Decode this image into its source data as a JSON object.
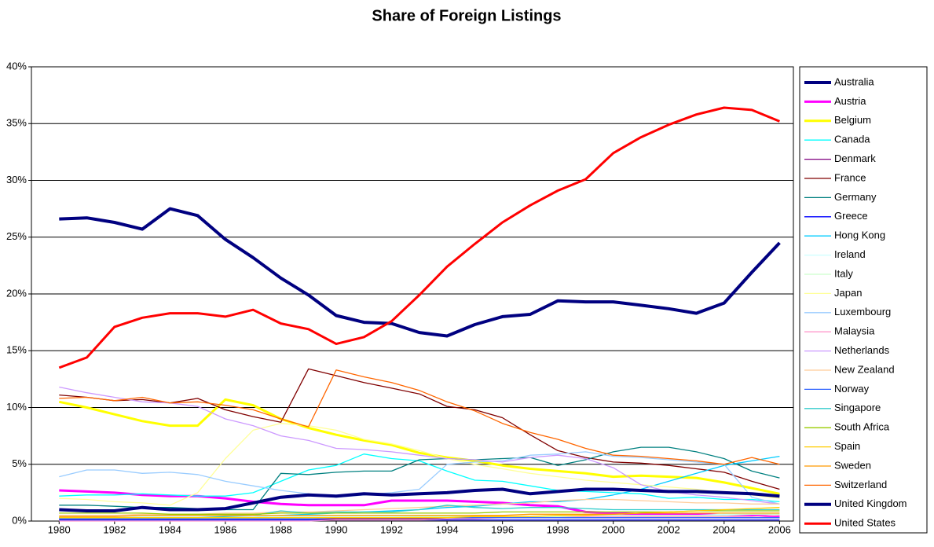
{
  "chart_data": {
    "type": "line",
    "title": "Share of Foreign Listings",
    "x": [
      1980,
      1981,
      1982,
      1983,
      1984,
      1985,
      1986,
      1987,
      1988,
      1989,
      1990,
      1991,
      1992,
      1993,
      1994,
      1995,
      1996,
      1997,
      1998,
      1999,
      2000,
      2001,
      2002,
      2003,
      2004,
      2005,
      2006
    ],
    "xlim": [
      1979,
      2006.5
    ],
    "xticks": [
      1980,
      1982,
      1984,
      1986,
      1988,
      1990,
      1992,
      1994,
      1996,
      1998,
      2000,
      2002,
      2004,
      2006
    ],
    "ylim": [
      0,
      40
    ],
    "yticks": [
      {
        "value": 0,
        "label": "0%"
      },
      {
        "value": 5,
        "label": "5%"
      },
      {
        "value": 10,
        "label": "10%"
      },
      {
        "value": 15,
        "label": "15%"
      },
      {
        "value": 20,
        "label": "20%"
      },
      {
        "value": 25,
        "label": "25%"
      },
      {
        "value": 30,
        "label": "30%"
      },
      {
        "value": 35,
        "label": "35%"
      },
      {
        "value": 40,
        "label": "40%"
      }
    ],
    "grid": true,
    "legend": "right",
    "series": [
      {
        "name": "Australia",
        "color": "#000080",
        "width": 4,
        "values": [
          26.6,
          26.7,
          26.3,
          25.7,
          27.5,
          26.9,
          24.8,
          23.2,
          21.4,
          19.9,
          18.1,
          17.5,
          17.4,
          16.6,
          16.3,
          17.3,
          18.0,
          18.2,
          19.4,
          19.3,
          19.3,
          19.0,
          18.7,
          18.3,
          19.2,
          21.9,
          24.5
        ]
      },
      {
        "name": "Austria",
        "color": "#ff00ff",
        "width": 3,
        "values": [
          2.7,
          2.6,
          2.5,
          2.3,
          2.2,
          2.2,
          2.0,
          1.7,
          1.5,
          1.4,
          1.4,
          1.4,
          1.8,
          1.8,
          1.8,
          1.7,
          1.6,
          1.4,
          1.3,
          0.8,
          0.7,
          0.6,
          0.6,
          0.6,
          0.5,
          0.5,
          0.4
        ]
      },
      {
        "name": "Belgium",
        "color": "#ffff00",
        "width": 3,
        "values": [
          10.5,
          10.0,
          9.4,
          8.8,
          8.4,
          8.4,
          10.7,
          10.2,
          9.0,
          8.2,
          7.6,
          7.1,
          6.7,
          6.0,
          5.6,
          5.3,
          4.9,
          4.6,
          4.4,
          4.2,
          3.9,
          4.0,
          3.9,
          3.8,
          3.4,
          2.9,
          2.4
        ]
      },
      {
        "name": "Canada",
        "color": "#00ffff",
        "width": 1.3,
        "values": [
          2.2,
          2.3,
          2.3,
          2.4,
          2.3,
          2.2,
          2.2,
          2.5,
          3.5,
          4.5,
          4.9,
          5.9,
          5.5,
          5.3,
          4.4,
          3.6,
          3.5,
          3.1,
          2.7,
          2.6,
          2.5,
          2.4,
          2.0,
          2.1,
          1.9,
          1.9,
          1.7
        ]
      },
      {
        "name": "Denmark",
        "color": "#800080",
        "width": 1.3,
        "values": [
          0.2,
          0.2,
          0.2,
          0.2,
          0.2,
          0.2,
          0.2,
          0.2,
          0.2,
          0.2,
          0.2,
          0.2,
          0.2,
          0.2,
          0.2,
          0.3,
          0.3,
          0.3,
          0.3,
          0.3,
          0.3,
          0.3,
          0.3,
          0.3,
          0.3,
          0.3,
          0.3
        ]
      },
      {
        "name": "France",
        "color": "#800000",
        "width": 1.3,
        "values": [
          11.1,
          10.9,
          10.6,
          10.7,
          10.4,
          10.8,
          9.8,
          9.2,
          8.7,
          13.4,
          12.8,
          12.2,
          11.7,
          11.2,
          10.1,
          9.8,
          9.1,
          7.6,
          6.2,
          5.6,
          5.2,
          5.1,
          4.9,
          4.6,
          4.3,
          3.5,
          2.8
        ]
      },
      {
        "name": "Germany",
        "color": "#008080",
        "width": 1.3,
        "values": [
          1.4,
          1.4,
          1.3,
          1.2,
          1.2,
          1.1,
          1.0,
          1.0,
          4.2,
          4.1,
          4.3,
          4.4,
          4.4,
          5.4,
          5.5,
          5.4,
          5.5,
          5.6,
          4.9,
          5.4,
          6.1,
          6.5,
          6.5,
          6.1,
          5.5,
          4.4,
          3.8
        ]
      },
      {
        "name": "Greece",
        "color": "#0000ff",
        "width": 1.3,
        "values": [
          0.1,
          0.1,
          0.1,
          0.1,
          0.1,
          0.1,
          0.1,
          0.1,
          0.1,
          0.1,
          0.1,
          0.1,
          0.1,
          0.1,
          0.1,
          0.1,
          0.1,
          0.1,
          0.1,
          0.1,
          0.1,
          0.1,
          0.1,
          0.1,
          0.1,
          0.1,
          0.1
        ]
      },
      {
        "name": "Hong Kong",
        "color": "#00ccff",
        "width": 1.3,
        "values": [
          0.3,
          0.3,
          0.3,
          0.3,
          0.3,
          0.3,
          0.3,
          0.3,
          0.5,
          0.6,
          0.7,
          0.8,
          0.9,
          1.0,
          1.2,
          1.3,
          1.5,
          1.7,
          1.7,
          1.9,
          2.3,
          2.8,
          3.5,
          4.2,
          4.9,
          5.3,
          5.7
        ]
      },
      {
        "name": "Ireland",
        "color": "#ccffff",
        "width": 1.3,
        "values": [
          0.4,
          0.4,
          0.4,
          0.4,
          0.4,
          0.4,
          0.4,
          0.4,
          0.4,
          0.4,
          0.4,
          0.4,
          0.4,
          0.4,
          0.4,
          0.4,
          0.4,
          0.4,
          0.5,
          0.5,
          0.5,
          0.5,
          0.5,
          0.5,
          0.6,
          0.6,
          0.6
        ]
      },
      {
        "name": "Italy",
        "color": "#ccffcc",
        "width": 1.3,
        "values": [
          0.3,
          0.3,
          0.3,
          0.3,
          0.3,
          0.3,
          0.3,
          0.3,
          0.3,
          0.3,
          0.3,
          0.3,
          0.3,
          0.4,
          0.4,
          0.4,
          0.4,
          0.4,
          0.4,
          0.4,
          0.5,
          0.5,
          0.5,
          0.5,
          0.5,
          0.6,
          0.6
        ]
      },
      {
        "name": "Japan",
        "color": "#ffff99",
        "width": 1.3,
        "values": [
          2.0,
          1.9,
          1.7,
          1.6,
          1.4,
          2.5,
          5.5,
          8.0,
          8.6,
          8.4,
          8.0,
          7.2,
          6.8,
          6.2,
          5.5,
          5.0,
          4.6,
          4.2,
          3.9,
          3.6,
          3.4,
          3.2,
          3.0,
          2.8,
          2.5,
          2.3,
          2.0
        ]
      },
      {
        "name": "Luxembourg",
        "color": "#99ccff",
        "width": 1.3,
        "values": [
          3.9,
          4.5,
          4.5,
          4.2,
          4.3,
          4.1,
          3.5,
          3.1,
          2.7,
          2.4,
          2.1,
          2.3,
          2.5,
          2.8,
          5.0,
          5.2,
          5.3,
          5.8,
          5.9,
          6.1,
          5.7,
          5.6,
          5.4,
          5.2,
          5.0,
          2.1,
          1.5
        ]
      },
      {
        "name": "Malaysia",
        "color": "#ff99cc",
        "width": 1.3,
        "values": [
          0.0,
          0.0,
          0.0,
          0.0,
          0.0,
          0.0,
          0.0,
          0.0,
          0.0,
          0.0,
          0.1,
          0.1,
          0.1,
          0.1,
          0.2,
          0.2,
          0.3,
          0.3,
          0.3,
          0.4,
          0.4,
          0.4,
          0.4,
          0.4,
          0.4,
          0.4,
          0.5
        ]
      },
      {
        "name": "Netherlands",
        "color": "#cc99ff",
        "width": 1.3,
        "values": [
          11.8,
          11.3,
          10.9,
          10.5,
          10.4,
          10.1,
          9.0,
          8.4,
          7.5,
          7.1,
          6.4,
          6.3,
          6.1,
          5.8,
          5.5,
          5.4,
          5.2,
          5.6,
          5.8,
          5.5,
          4.7,
          3.2,
          2.6,
          2.3,
          2.1,
          1.8,
          1.5
        ]
      },
      {
        "name": "New Zealand",
        "color": "#ffcc99",
        "width": 1.3,
        "values": [
          0.5,
          0.5,
          0.5,
          0.6,
          0.6,
          0.6,
          0.7,
          0.7,
          0.8,
          0.8,
          0.9,
          1.0,
          1.1,
          1.2,
          1.3,
          1.4,
          1.5,
          1.6,
          1.8,
          1.9,
          1.9,
          1.8,
          1.7,
          1.6,
          1.6,
          1.5,
          1.5
        ]
      },
      {
        "name": "Norway",
        "color": "#3366ff",
        "width": 1.3,
        "values": [
          0.2,
          0.2,
          0.2,
          0.2,
          0.2,
          0.2,
          0.2,
          0.2,
          0.2,
          0.2,
          0.3,
          0.3,
          0.3,
          0.3,
          0.3,
          0.3,
          0.3,
          0.3,
          0.3,
          0.3,
          0.3,
          0.3,
          0.3,
          0.3,
          0.3,
          0.3,
          0.3
        ]
      },
      {
        "name": "Singapore",
        "color": "#33cccc",
        "width": 1.3,
        "values": [
          0.3,
          0.3,
          0.3,
          0.3,
          0.3,
          0.3,
          0.4,
          0.5,
          0.9,
          0.7,
          0.8,
          0.8,
          0.8,
          1.0,
          1.4,
          1.2,
          1.1,
          1.2,
          1.2,
          1.1,
          1.0,
          1.0,
          1.0,
          1.0,
          1.0,
          1.0,
          1.0
        ]
      },
      {
        "name": "South Africa",
        "color": "#99cc00",
        "width": 1.3,
        "values": [
          0.7,
          0.7,
          0.7,
          0.7,
          0.6,
          0.6,
          0.6,
          0.6,
          0.7,
          0.7,
          0.7,
          0.7,
          0.7,
          0.7,
          0.7,
          0.7,
          0.8,
          0.8,
          0.8,
          0.8,
          0.8,
          0.8,
          0.8,
          0.9,
          0.9,
          0.9,
          0.9
        ]
      },
      {
        "name": "Spain",
        "color": "#ffcc00",
        "width": 1.3,
        "values": [
          0.3,
          0.3,
          0.3,
          0.3,
          0.3,
          0.3,
          0.3,
          0.3,
          0.3,
          0.3,
          0.3,
          0.3,
          0.3,
          0.3,
          0.3,
          0.4,
          0.4,
          0.4,
          0.5,
          0.5,
          0.6,
          0.7,
          0.8,
          0.9,
          1.0,
          1.1,
          1.2
        ]
      },
      {
        "name": "Sweden",
        "color": "#ff9900",
        "width": 1.3,
        "values": [
          0.4,
          0.4,
          0.4,
          0.5,
          0.5,
          0.5,
          0.5,
          0.5,
          0.5,
          0.5,
          0.5,
          0.5,
          0.5,
          0.5,
          0.5,
          0.5,
          0.5,
          0.6,
          0.6,
          0.6,
          0.6,
          0.7,
          0.7,
          0.7,
          0.7,
          0.7,
          0.7
        ]
      },
      {
        "name": "Switzerland",
        "color": "#ff6600",
        "width": 1.3,
        "values": [
          10.8,
          10.9,
          10.6,
          10.9,
          10.4,
          10.5,
          10.2,
          9.8,
          9.0,
          8.3,
          13.3,
          12.7,
          12.2,
          11.5,
          10.5,
          9.7,
          8.6,
          7.8,
          7.2,
          6.4,
          5.8,
          5.7,
          5.5,
          5.3,
          5.0,
          5.6,
          5.0
        ]
      },
      {
        "name": "United Kingdom",
        "color": "#000080",
        "width": 4,
        "values": [
          1.0,
          0.9,
          0.9,
          1.2,
          1.0,
          1.0,
          1.1,
          1.6,
          2.1,
          2.3,
          2.2,
          2.4,
          2.3,
          2.4,
          2.5,
          2.7,
          2.8,
          2.4,
          2.6,
          2.8,
          2.8,
          2.7,
          2.6,
          2.6,
          2.5,
          2.4,
          2.2
        ]
      },
      {
        "name": "United States",
        "color": "#ff0000",
        "width": 3,
        "values": [
          13.5,
          14.4,
          17.1,
          17.9,
          18.3,
          18.3,
          18.0,
          18.6,
          17.4,
          16.9,
          15.6,
          16.2,
          17.6,
          19.9,
          22.4,
          24.4,
          26.3,
          27.8,
          29.1,
          30.1,
          32.4,
          33.8,
          34.9,
          35.8,
          36.4,
          36.2,
          35.2
        ]
      }
    ]
  }
}
